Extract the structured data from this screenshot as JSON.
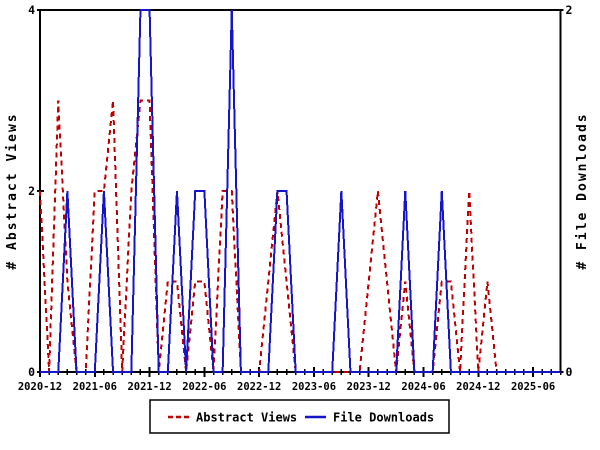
{
  "chart_data": {
    "type": "line",
    "title": "",
    "months": [
      "2020-12",
      "2021-01",
      "2021-02",
      "2021-03",
      "2021-04",
      "2021-05",
      "2021-06",
      "2021-07",
      "2021-08",
      "2021-09",
      "2021-10",
      "2021-11",
      "2021-12",
      "2022-01",
      "2022-02",
      "2022-03",
      "2022-04",
      "2022-05",
      "2022-06",
      "2022-07",
      "2022-08",
      "2022-09",
      "2022-10",
      "2022-11",
      "2022-12",
      "2023-01",
      "2023-02",
      "2023-03",
      "2023-04",
      "2023-05",
      "2023-06",
      "2023-07",
      "2023-08",
      "2023-09",
      "2023-10",
      "2023-11",
      "2023-12",
      "2024-01",
      "2024-02",
      "2024-03",
      "2024-04",
      "2024-05",
      "2024-06",
      "2024-07",
      "2024-08",
      "2024-09",
      "2024-10",
      "2024-11",
      "2024-12",
      "2025-01",
      "2025-02",
      "2025-03",
      "2025-04",
      "2025-05",
      "2025-06",
      "2025-07",
      "2025-08",
      "2025-09"
    ],
    "series": [
      {
        "name": "Abstract Views",
        "axis": "left",
        "color": "#c00000",
        "style": "dashed",
        "values": [
          2,
          0,
          3,
          1,
          0,
          0,
          2,
          2,
          3,
          0,
          2,
          3,
          3,
          0,
          1,
          1,
          0,
          1,
          1,
          0,
          2,
          2,
          0,
          0,
          0,
          1,
          2,
          1,
          0,
          0,
          0,
          0,
          0,
          0,
          0,
          0,
          1,
          2,
          1,
          0,
          1,
          0,
          0,
          0,
          1,
          1,
          0,
          2,
          0,
          1,
          0,
          0,
          0,
          0,
          0,
          0,
          0,
          0
        ]
      },
      {
        "name": "File Downloads",
        "axis": "right",
        "color": "#1414c8",
        "style": "solid",
        "values": [
          0,
          0,
          0,
          1,
          0,
          0,
          0,
          1,
          0,
          0,
          0,
          2,
          2,
          0,
          0,
          1,
          0,
          1,
          1,
          0,
          0,
          2,
          0,
          0,
          0,
          0,
          1,
          1,
          0,
          0,
          0,
          0,
          0,
          1,
          0,
          0,
          0,
          0,
          0,
          0,
          1,
          0,
          0,
          0,
          1,
          0,
          0,
          0,
          0,
          0,
          0,
          0,
          0,
          0,
          0,
          0,
          0,
          0
        ]
      }
    ],
    "left_axis": {
      "label": "# Abstract Views",
      "range": [
        0,
        4
      ],
      "tick_values": [
        0,
        2,
        4
      ],
      "tick_labels": [
        "0",
        "2",
        "4"
      ]
    },
    "right_axis": {
      "label": "# File Downloads",
      "range": [
        0,
        2
      ],
      "tick_values": [
        0,
        2
      ],
      "tick_labels": [
        "0",
        "2"
      ]
    },
    "x_axis": {
      "major_tick_every": 6,
      "minor_tick_every": 1,
      "labels": [
        "2020-12",
        "2021-06",
        "2021-12",
        "2022-06",
        "2022-12",
        "2023-06",
        "2023-12",
        "2024-06",
        "2024-12",
        "2025-06"
      ]
    },
    "grid": false,
    "legend_position": "bottom-center",
    "background_color": "#ffffff",
    "border_color": "#000000"
  },
  "legend": {
    "items": [
      {
        "label": "Abstract Views",
        "color": "#c00000",
        "style": "dashed"
      },
      {
        "label": "File Downloads",
        "color": "#1414c8",
        "style": "solid"
      }
    ]
  }
}
